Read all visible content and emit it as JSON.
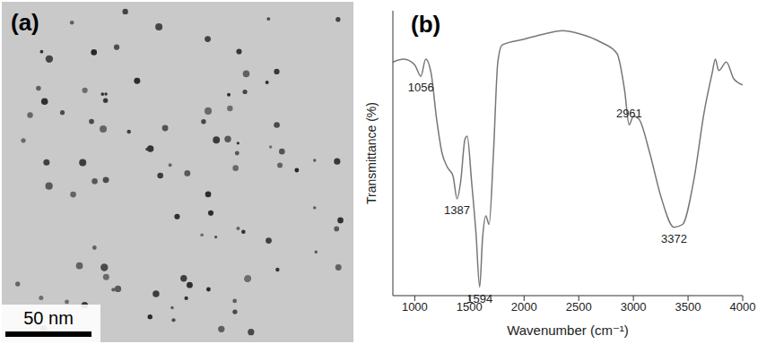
{
  "image": {
    "label": "(a)",
    "scale_bar": "50 nm"
  },
  "chart_data": {
    "type": "line",
    "title": "(b)",
    "x_label": "Wavenumber (cm⁻¹)",
    "y_label": "Transmittance (%)",
    "x": [
      800,
      900,
      1000,
      1056,
      1100,
      1150,
      1200,
      1250,
      1300,
      1350,
      1387,
      1420,
      1460,
      1480,
      1520,
      1560,
      1594,
      1620,
      1650,
      1680,
      1720,
      1760,
      1800,
      2000,
      2200,
      2350,
      2500,
      2700,
      2850,
      2920,
      2961,
      3000,
      3050,
      3150,
      3250,
      3372,
      3450,
      3550,
      3650,
      3720,
      3750,
      3780,
      3850,
      3920,
      4000
    ],
    "values": [
      82,
      83,
      81,
      77,
      83,
      78,
      62,
      50,
      45,
      42,
      34,
      40,
      55,
      56,
      40,
      22,
      3,
      20,
      28,
      25,
      50,
      82,
      88,
      90,
      92,
      93,
      92,
      89,
      85,
      72,
      60,
      63,
      62,
      50,
      35,
      24,
      25,
      40,
      65,
      78,
      83,
      79,
      82,
      76,
      74
    ],
    "color": "#777777",
    "xlim": [
      800,
      4000
    ],
    "xticks": [
      1000,
      1500,
      2000,
      2500,
      3000,
      3500,
      4000
    ],
    "ylim": [
      0,
      100
    ],
    "tick_labels": "x",
    "grid": false,
    "annotations": [
      1056,
      1387,
      1594,
      2961,
      3372
    ]
  }
}
